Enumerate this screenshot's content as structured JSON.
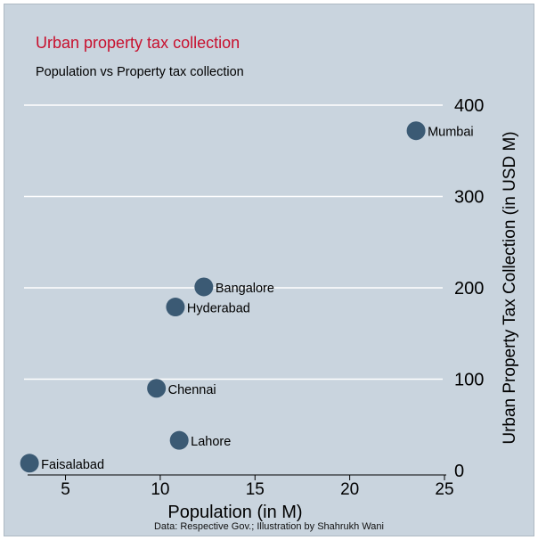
{
  "title": "Urban property tax collection",
  "subtitle": "Population vs Property tax collection",
  "source_note": "Data: Respective Gov.; Illustration by Shahrukh Wani",
  "colors": {
    "background": "#c9d4de",
    "title": "#c8102e",
    "marker": "#3b5a74",
    "grid": "#ffffff"
  },
  "chart_data": {
    "type": "scatter",
    "title": "Urban property tax collection",
    "subtitle": "Population vs Property tax collection",
    "xlabel": "Population (in M)",
    "ylabel": "Urban Property Tax Collection (in USD M)",
    "xlim": [
      3,
      25
    ],
    "ylim": [
      0,
      400
    ],
    "x_ticks": [
      5,
      10,
      15,
      20,
      25
    ],
    "y_ticks": [
      0,
      100,
      200,
      300,
      400
    ],
    "y_axis_side": "right",
    "grid": "horizontal",
    "points": [
      {
        "label": "Mumbai",
        "x": 23.5,
        "y": 372
      },
      {
        "label": "Bangalore",
        "x": 12.3,
        "y": 201
      },
      {
        "label": "Hyderabad",
        "x": 10.8,
        "y": 179
      },
      {
        "label": "Chennai",
        "x": 9.8,
        "y": 90
      },
      {
        "label": "Lahore",
        "x": 11.0,
        "y": 33
      },
      {
        "label": "Faisalabad",
        "x": 3.1,
        "y": 8
      }
    ]
  }
}
